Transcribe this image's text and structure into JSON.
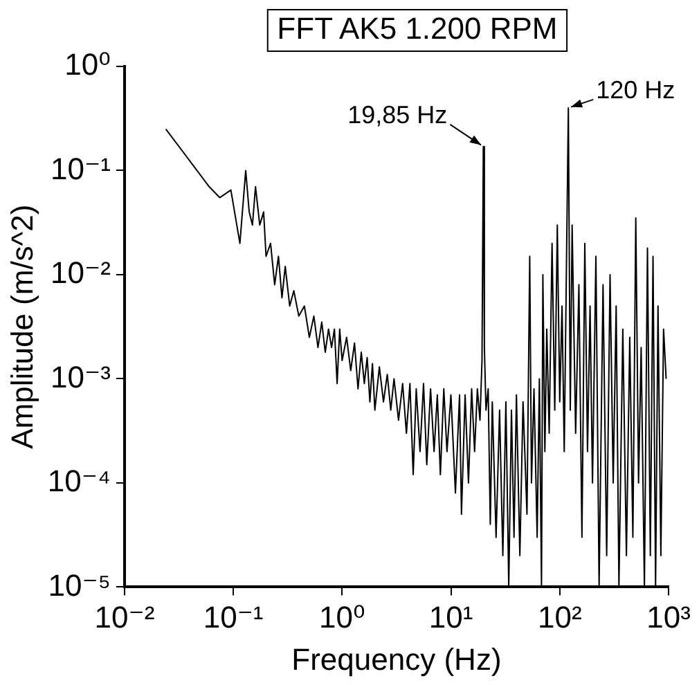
{
  "chart_data": {
    "type": "line",
    "title": "FFT AK5 1.200 RPM",
    "xlabel": "Frequency (Hz)",
    "ylabel": "Amplitude (m/s^2)",
    "log": "xy",
    "grid": false,
    "legend": false,
    "marker": "none",
    "line_style": "solid",
    "xlim": [
      0.01,
      1000
    ],
    "ylim": [
      1e-05,
      1
    ],
    "xticks": [
      {
        "value": 0.01,
        "label": "10⁻²"
      },
      {
        "value": 0.1,
        "label": "10⁻¹"
      },
      {
        "value": 1,
        "label": "10⁰"
      },
      {
        "value": 10,
        "label": "10¹"
      },
      {
        "value": 100,
        "label": "10²"
      },
      {
        "value": 1000,
        "label": "10³"
      }
    ],
    "yticks": [
      {
        "value": 1e-05,
        "label": "10⁻⁵"
      },
      {
        "value": 0.0001,
        "label": "10⁻⁴"
      },
      {
        "value": 0.001,
        "label": "10⁻³"
      },
      {
        "value": 0.01,
        "label": "10⁻²"
      },
      {
        "value": 0.1,
        "label": "10⁻¹"
      },
      {
        "value": 1,
        "label": "10⁰"
      }
    ],
    "annotations": [
      {
        "text": "19,85 Hz",
        "x": 19.85,
        "y": 0.17
      },
      {
        "text": "120 Hz",
        "x": 120,
        "y": 0.4
      }
    ],
    "series": [
      {
        "color": "#000000",
        "x": [
          0.024,
          0.06,
          0.075,
          0.085,
          0.095,
          0.105,
          0.115,
          0.13,
          0.14,
          0.15,
          0.16,
          0.175,
          0.19,
          0.2,
          0.22,
          0.24,
          0.26,
          0.28,
          0.3,
          0.33,
          0.36,
          0.4,
          0.45,
          0.5,
          0.55,
          0.6,
          0.65,
          0.7,
          0.75,
          0.8,
          0.85,
          0.9,
          0.95,
          1.0,
          1.1,
          1.2,
          1.3,
          1.4,
          1.5,
          1.6,
          1.7,
          1.8,
          1.9,
          2.0,
          2.2,
          2.4,
          2.6,
          2.8,
          3.0,
          3.3,
          3.6,
          3.9,
          4.2,
          4.5,
          4.8,
          5.2,
          5.6,
          6.0,
          6.5,
          7.0,
          7.5,
          8.0,
          8.6,
          9.2,
          10,
          11,
          12,
          12.5,
          13.5,
          14.5,
          15.5,
          16.5,
          17.5,
          18.5,
          19.3,
          19.85,
          20.3,
          21,
          22,
          23,
          24,
          26,
          28,
          30,
          32,
          34,
          36,
          38,
          40,
          43,
          46,
          50,
          53,
          55,
          58,
          62,
          65,
          68,
          70,
          73,
          76,
          80,
          85,
          90,
          95,
          100,
          105,
          110,
          115,
          120,
          125,
          130,
          140,
          150,
          160,
          170,
          180,
          190,
          200,
          215,
          230,
          250,
          270,
          290,
          310,
          330,
          350,
          380,
          410,
          440,
          470,
          500,
          530,
          560,
          600,
          640,
          680,
          720,
          760,
          800,
          850,
          900,
          950
        ],
        "values": [
          0.25,
          0.07,
          0.055,
          0.06,
          0.065,
          0.035,
          0.02,
          0.1,
          0.04,
          0.03,
          0.07,
          0.03,
          0.04,
          0.015,
          0.02,
          0.008,
          0.015,
          0.006,
          0.012,
          0.005,
          0.007,
          0.004,
          0.005,
          0.0025,
          0.004,
          0.002,
          0.0035,
          0.0018,
          0.003,
          0.002,
          0.003,
          0.0009,
          0.003,
          0.0015,
          0.0025,
          0.0012,
          0.0022,
          0.0008,
          0.0018,
          0.0009,
          0.0016,
          0.0006,
          0.0014,
          0.0005,
          0.0013,
          0.0006,
          0.0011,
          0.0005,
          0.001,
          0.0004,
          0.0009,
          0.0003,
          0.0009,
          0.00012,
          0.0008,
          0.0002,
          0.0009,
          0.00015,
          0.0008,
          0.0002,
          0.0007,
          0.00012,
          0.0008,
          0.0002,
          0.0007,
          8e-05,
          0.0007,
          5e-05,
          0.0007,
          0.0001,
          0.0008,
          0.0002,
          0.0008,
          0.0004,
          0.0015,
          0.17,
          0.002,
          0.0005,
          0.0008,
          4e-05,
          0.0006,
          3e-05,
          0.0005,
          2e-05,
          0.0006,
          1e-05,
          0.0005,
          3e-05,
          0.0007,
          2e-05,
          0.0006,
          5e-05,
          0.015,
          0.0001,
          0.0008,
          3e-05,
          0.001,
          1e-05,
          0.01,
          0.0002,
          0.003,
          0.0003,
          0.02,
          0.0005,
          0.03,
          0.0006,
          0.005,
          0.0002,
          0.01,
          0.4,
          0.0005,
          0.03,
          0.0003,
          0.008,
          3e-05,
          0.02,
          0.0002,
          0.005,
          0.0001,
          0.015,
          1e-05,
          0.008,
          2e-05,
          0.01,
          0.0001,
          0.005,
          1e-05,
          0.003,
          2e-05,
          0.0025,
          3e-05,
          0.035,
          0.0001,
          0.002,
          1e-05,
          0.018,
          2e-05,
          0.015,
          1e-05,
          0.005,
          2e-05,
          0.003,
          0.001
        ]
      }
    ]
  }
}
